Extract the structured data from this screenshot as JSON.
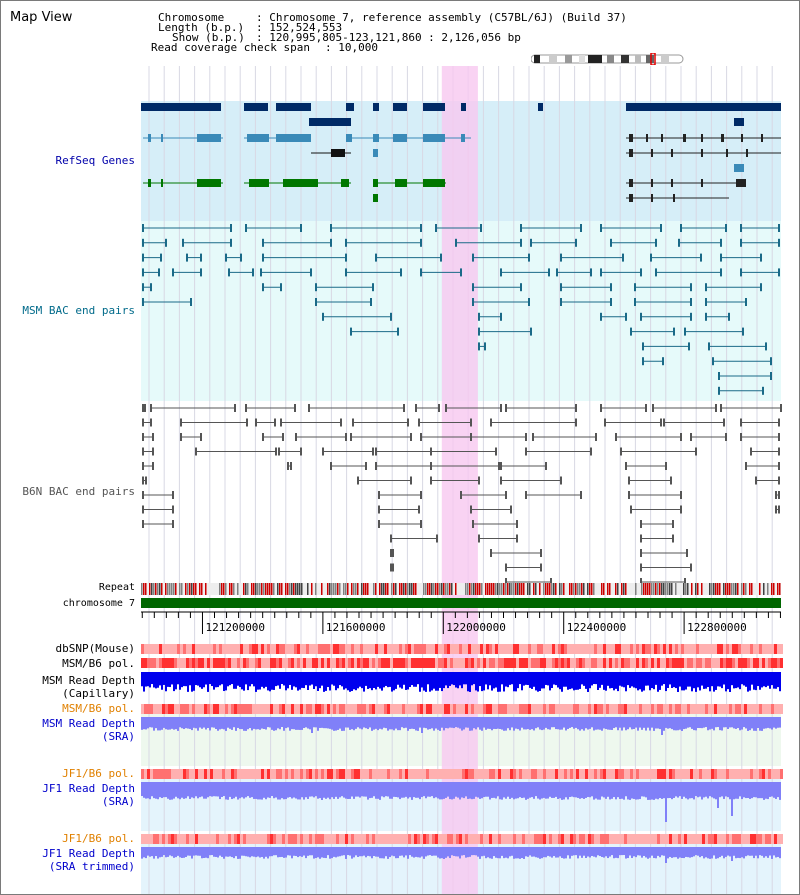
{
  "panel": {
    "title": "Map View"
  },
  "info": {
    "chromosome_key": "Chromosome",
    "chromosome_value": ": Chromosome 7, reference assembly (C57BL/6J) (Build 37)",
    "length_key": "Length (b.p.)",
    "length_value": ": 152,524,553",
    "show_key": "Show (b.p.)",
    "show_value": ": 120,995,805-123,121,860 : 2,126,056 bp",
    "span_key": "Read coverage check span",
    "span_value": ": 10,000"
  },
  "tracks": {
    "refseq": {
      "label": "RefSeq Genes",
      "color": "#0000aa"
    },
    "msm_bac": {
      "label": "MSM BAC end pairs",
      "color": "#006a8a"
    },
    "b6n_bac": {
      "label": "B6N BAC end pairs",
      "color": "#555555"
    },
    "repeat": {
      "label": "Repeat"
    },
    "chromosome": {
      "label": "chromosome 7"
    },
    "dbsnp": {
      "label": "dbSNP(Mouse)"
    },
    "msm_b6_pol": {
      "label": "MSM/B6 pol."
    },
    "msm_depth_cap": {
      "label_1": "MSM Read Depth",
      "label_2": "(Capillary)"
    },
    "msm_b6_pol_2": {
      "label": "MSM/B6 pol.",
      "color": "#e08000"
    },
    "msm_depth_sra": {
      "label_1": "MSM Read Depth",
      "label_2": "(SRA)",
      "color": "#0000cc"
    },
    "jf1_b6_pol": {
      "label": "JF1/B6 pol.",
      "color": "#e08000"
    },
    "jf1_depth_sra": {
      "label_1": "JF1 Read Depth",
      "label_2": "(SRA)",
      "color": "#0000cc"
    },
    "jf1_b6_pol_2": {
      "label": "JF1/B6 pol.",
      "color": "#e08000"
    },
    "jf1_depth_trim": {
      "label_1": "JF1 Read Depth",
      "label_2": "(SRA trimmed)",
      "color": "#0000cc"
    }
  },
  "axis": {
    "ticks": [
      {
        "pos": 121200000,
        "label": "121200000"
      },
      {
        "pos": 121600000,
        "label": "121600000"
      },
      {
        "pos": 122000000,
        "label": "122000000"
      },
      {
        "pos": 122400000,
        "label": "122400000"
      },
      {
        "pos": 122800000,
        "label": "122800000"
      }
    ],
    "range": [
      120995805,
      123121860
    ],
    "highlight": [
      121995000,
      122115000
    ]
  },
  "colors": {
    "refseq_bg": "#d6eef8",
    "refseq_dark": "#002a66",
    "refseq_mid": "#3a8ab8",
    "refseq_green": "#007700",
    "msm_bg": "#e6fafa",
    "msm_line": "#1a6a88",
    "b6n_line": "#555555",
    "highlight": "#f8c8f0",
    "chromosome": "#006600",
    "depth_dark": "#0000ee",
    "depth_light": "#8080f8",
    "pol_red": "#ff3030",
    "pol_pink": "#ffb0b0"
  }
}
